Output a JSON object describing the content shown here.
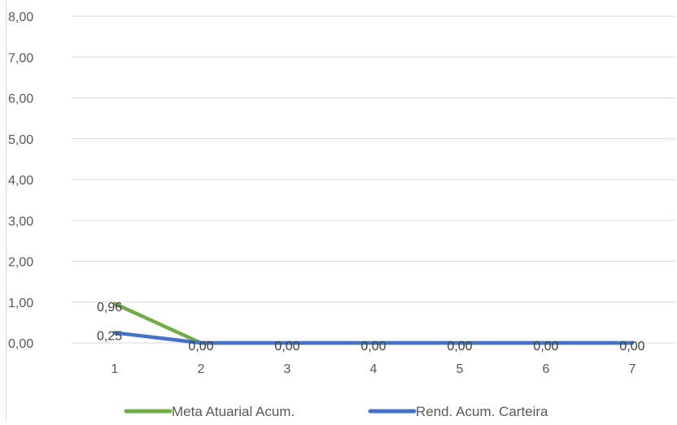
{
  "chart_data": {
    "type": "line",
    "categories": [
      "1",
      "2",
      "3",
      "4",
      "5",
      "6",
      "7"
    ],
    "ylim": [
      0,
      8
    ],
    "y_ticks": [
      "0,00",
      "1,00",
      "2,00",
      "3,00",
      "4,00",
      "5,00",
      "6,00",
      "7,00",
      "8,00"
    ],
    "y_tick_values": [
      0,
      1,
      2,
      3,
      4,
      5,
      6,
      7,
      8
    ],
    "grid": true,
    "legend_position": "bottom",
    "series": [
      {
        "name": "Meta Atuarial Acum.",
        "color": "#70ad47",
        "values": [
          0.96,
          0,
          0,
          0,
          0,
          0,
          0
        ],
        "labels": [
          "0,96",
          "",
          "",
          "",
          "",
          "",
          ""
        ]
      },
      {
        "name": "Rend. Acum. Carteira",
        "color": "#4472c4",
        "values": [
          0.25,
          0,
          0,
          0,
          0,
          0,
          0
        ],
        "labels": [
          "0,25",
          "0,00",
          "0,00",
          "0,00",
          "0,00",
          "0,00",
          "0,00"
        ]
      }
    ]
  }
}
